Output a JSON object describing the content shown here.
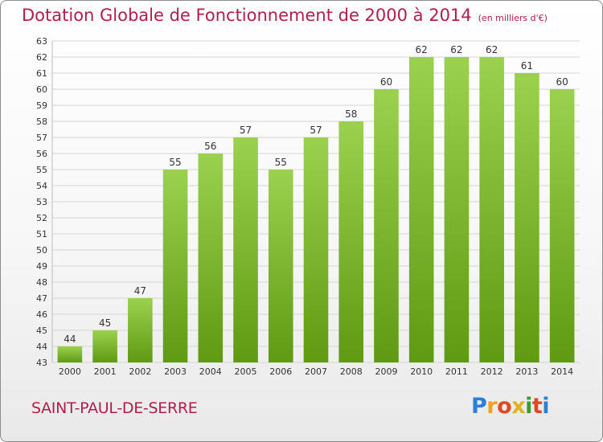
{
  "title": "Dotation Globale de Fonctionnement de 2000 à 2014",
  "subtitle": "(en milliers d'€)",
  "town": "SAINT-PAUL-DE-SERRE",
  "logo": {
    "text": "Proxiti",
    "letters": [
      "P",
      "r",
      "o",
      "x",
      "i",
      "t",
      "i"
    ]
  },
  "colors": {
    "title": "#b21e4b",
    "bar_top": "#9bd14e",
    "bar_bottom": "#5f9a12",
    "grid": "#d6d6d6",
    "axis_text": "#333333"
  },
  "chart_data": {
    "type": "bar",
    "title": "Dotation Globale de Fonctionnement de 2000 à 2014",
    "subtitle": "(en milliers d'€)",
    "xlabel": "",
    "ylabel": "",
    "categories": [
      "2000",
      "2001",
      "2002",
      "2003",
      "2004",
      "2005",
      "2006",
      "2007",
      "2008",
      "2009",
      "2010",
      "2011",
      "2012",
      "2013",
      "2014"
    ],
    "values": [
      44,
      45,
      47,
      55,
      56,
      57,
      55,
      57,
      58,
      60,
      62,
      62,
      62,
      61,
      60
    ],
    "ylim": [
      43,
      63
    ],
    "yticks": [
      43,
      44,
      45,
      46,
      47,
      48,
      49,
      50,
      51,
      52,
      53,
      54,
      55,
      56,
      57,
      58,
      59,
      60,
      61,
      62,
      63
    ],
    "grid": true,
    "data_labels": true
  }
}
